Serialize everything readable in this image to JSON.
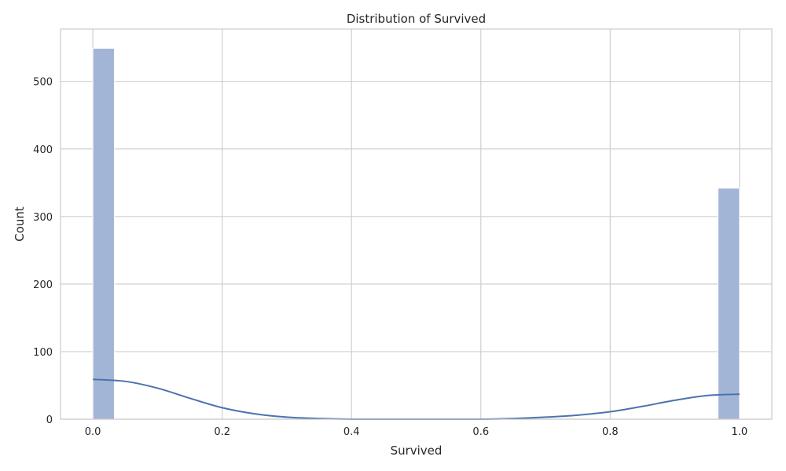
{
  "chart_data": {
    "type": "bar",
    "title": "Distribution of Survived",
    "xlabel": "Survived",
    "ylabel": "Count",
    "xlim": [
      -0.05,
      1.05
    ],
    "ylim": [
      0,
      577.5
    ],
    "xticks": [
      0.0,
      0.2,
      0.4,
      0.6,
      0.8,
      1.0
    ],
    "xtick_labels": [
      "0.0",
      "0.2",
      "0.4",
      "0.6",
      "0.8",
      "1.0"
    ],
    "yticks": [
      0,
      100,
      200,
      300,
      400,
      500
    ],
    "ytick_labels": [
      "0",
      "100",
      "200",
      "300",
      "400",
      "500"
    ],
    "grid": true,
    "bins": [
      {
        "x0": 0.0,
        "x1": 0.0333,
        "count": 549
      },
      {
        "x0": 0.9667,
        "x1": 1.0,
        "count": 342
      }
    ],
    "kde": {
      "x": [
        0.0,
        0.05,
        0.1,
        0.15,
        0.2,
        0.25,
        0.3,
        0.35,
        0.4,
        0.45,
        0.5,
        0.55,
        0.6,
        0.65,
        0.7,
        0.75,
        0.8,
        0.85,
        0.9,
        0.95,
        1.0
      ],
      "y": [
        59,
        56,
        46,
        31,
        17,
        8,
        3,
        1,
        0,
        0,
        0,
        0,
        0,
        1,
        3,
        6,
        11,
        19,
        28,
        35,
        37
      ]
    },
    "colors": {
      "bar_fill": "#a3b5d6",
      "bar_edge": "#ffffff",
      "kde_line": "#4c72b0"
    }
  }
}
